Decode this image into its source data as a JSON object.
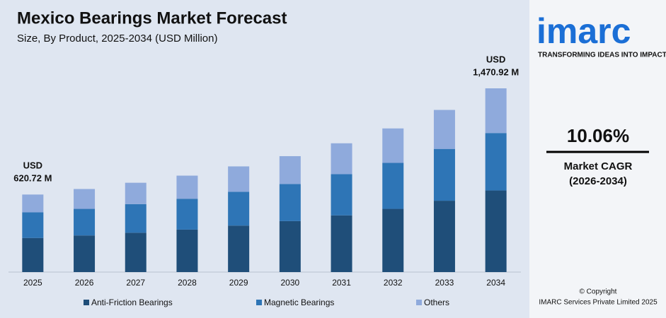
{
  "chart_data": {
    "type": "stacked-bar",
    "title": "Mexico Bearings Market Forecast",
    "subtitle": "Size, By Product, 2025-2034 (USD Million)",
    "categories": [
      "2025",
      "2026",
      "2027",
      "2028",
      "2029",
      "2030",
      "2031",
      "2032",
      "2033",
      "2034"
    ],
    "series": [
      {
        "name": "Anti-Friction Bearings",
        "color": "#1f4e79",
        "values": [
          273.12,
          293,
          315,
          340,
          372,
          408,
          454,
          506,
          571,
          653.09
        ]
      },
      {
        "name": "Magnetic Bearings",
        "color": "#2e75b6",
        "values": [
          204.84,
          213,
          229,
          247,
          271,
          297,
          330,
          368,
          415,
          460.04
        ]
      },
      {
        "name": "Others",
        "color": "#8faadc",
        "values": [
          142.76,
          159,
          171,
          185,
          203,
          223,
          247,
          276,
          312,
          357.79
        ]
      }
    ],
    "annotations": [
      {
        "lines": [
          "USD",
          "620.72 M"
        ]
      },
      {
        "lines": [
          "USD",
          "1,470.92 M"
        ]
      }
    ],
    "legend": "bottom"
  },
  "sidebar": {
    "logo": "imarc",
    "tagline": "TRANSFORMING IDEAS INTO IMPACT",
    "cagr": "10.06%",
    "cagr_label": "Market CAGR",
    "cagr_period": "(2026-2034)",
    "copyright": "© Copyright",
    "company": "IMARC Services Private Limited 2025"
  }
}
